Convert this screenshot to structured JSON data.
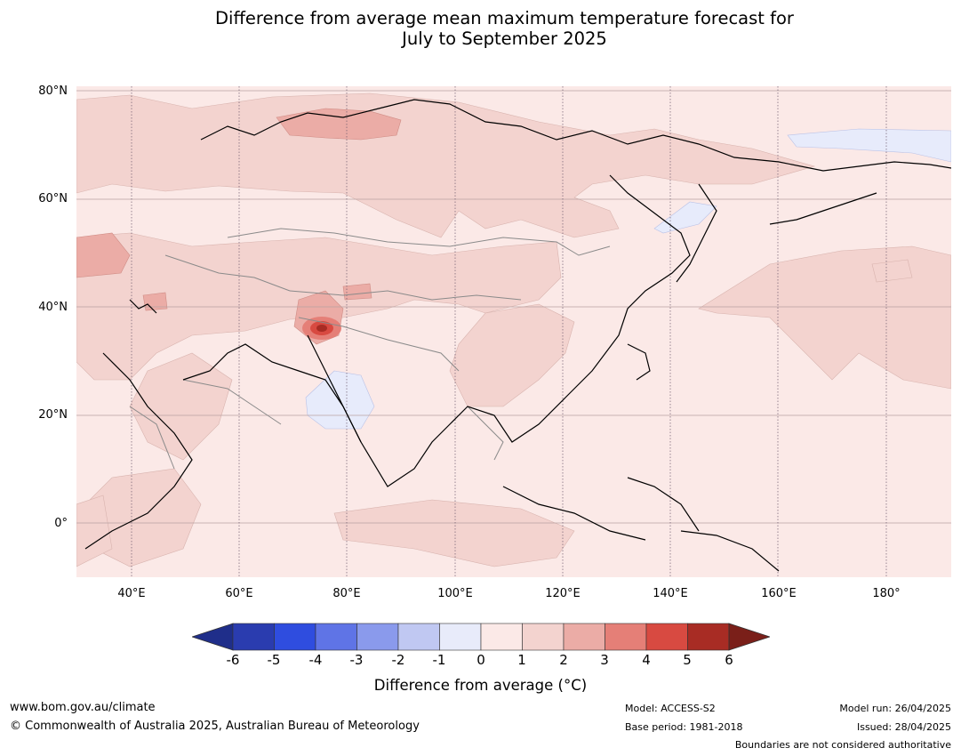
{
  "title": {
    "line1": "Difference from average mean maximum temperature forecast for",
    "line2": "July to September 2025"
  },
  "map": {
    "lat_labels": [
      "80°N",
      "60°N",
      "40°N",
      "20°N",
      "0°"
    ],
    "lon_labels": [
      "40°E",
      "60°E",
      "80°E",
      "100°E",
      "120°E",
      "140°E",
      "160°E",
      "180°"
    ],
    "gridlines": true,
    "anomaly_colors": {
      "near_zero": "#fbe9e7",
      "plus_1_2": "#f3d3cf",
      "plus_2_3": "#ebaca6",
      "plus_3_4": "#e57f77",
      "plus_5_6": "#a82c24",
      "minus_0_1": "#e7ebfb",
      "minus_1_2": "#c0c8f2"
    }
  },
  "colorbar": {
    "ticks": [
      "-6",
      "-5",
      "-4",
      "-3",
      "-2",
      "-1",
      "0",
      "1",
      "2",
      "3",
      "4",
      "5",
      "6"
    ],
    "colors": [
      "#1f2e8a",
      "#2a3caf",
      "#2f4ddf",
      "#5f74e6",
      "#8a9aec",
      "#c0c8f2",
      "#e8ebfa",
      "#fbe9e7",
      "#f3d3cf",
      "#ebaca6",
      "#e57f77",
      "#d84a41",
      "#a82c24",
      "#7a1f19"
    ],
    "label": "Difference from average (°C)"
  },
  "footer": {
    "website": "www.bom.gov.au/climate",
    "copyright": "© Commonwealth of Australia 2025, Australian Bureau of Meteorology",
    "model": "Model: ACCESS-S2",
    "base_period": "Base period: 1981-2018",
    "model_run": "Model run: 26/04/2025",
    "issued": "Issued: 28/04/2025",
    "boundaries_note": "Boundaries are not considered authoritative"
  }
}
